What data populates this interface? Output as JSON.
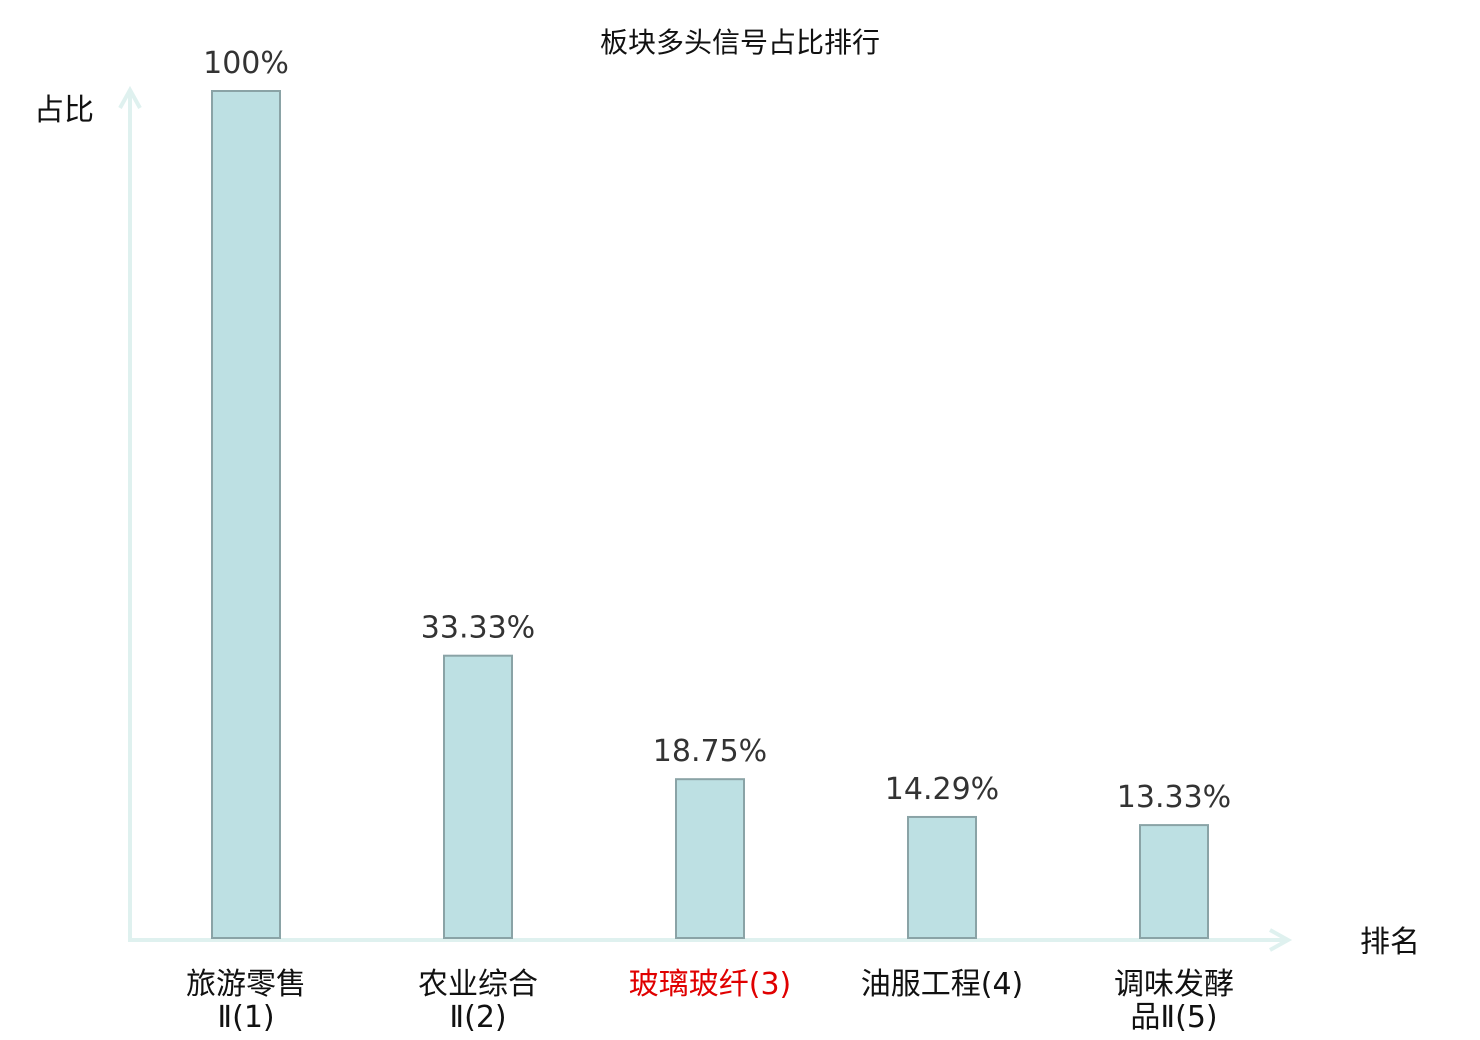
{
  "chart_data": {
    "type": "bar",
    "title": "板块多头信号占比排行",
    "xlabel": "排名",
    "ylabel": "占比",
    "ylim": [
      0,
      100
    ],
    "grid": false,
    "categories": [
      {
        "name": "旅游零售Ⅱ",
        "rank": "(1)",
        "lines": [
          "旅游零售",
          "Ⅱ(1)"
        ],
        "highlight": false
      },
      {
        "name": "农业综合Ⅱ",
        "rank": "(2)",
        "lines": [
          "农业综合",
          "Ⅱ(2)"
        ],
        "highlight": false
      },
      {
        "name": "玻璃玻纤",
        "rank": "(3)",
        "lines": [
          "玻璃玻纤(3)"
        ],
        "highlight": true
      },
      {
        "name": "油服工程",
        "rank": "(4)",
        "lines": [
          "油服工程(4)"
        ],
        "highlight": false
      },
      {
        "name": "调味发酵品Ⅱ",
        "rank": "(5)",
        "lines": [
          "调味发酵",
          "品Ⅱ(5)"
        ],
        "highlight": false
      }
    ],
    "values": [
      100,
      33.33,
      18.75,
      14.29,
      13.33
    ],
    "value_labels": [
      "100%",
      "33.33%",
      "18.75%",
      "14.29%",
      "13.33%"
    ],
    "colors": {
      "bar_fill": "#bde0e3",
      "bar_stroke": "#8aa3a6",
      "axis": "#dff1ef",
      "highlight_text": "#e00000"
    }
  }
}
